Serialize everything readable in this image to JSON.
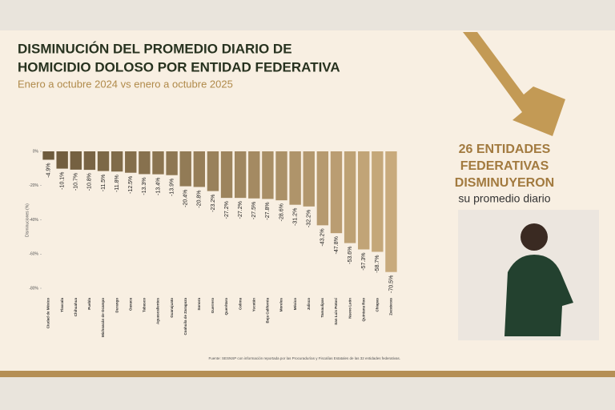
{
  "chart_data": {
    "type": "bar",
    "title": [
      "DISMINUCIÓN DEL PROMEDIO DIARIO DE",
      "HOMICIDIO DOLOSO POR ENTIDAD FEDERATIVA"
    ],
    "subtitle": "Enero a octubre 2024 vs enero a octubre 2025",
    "ylabel": "Disminuciones (%)",
    "source": "Fuente: SESNSP con información reportada por las Procuradurías y Fiscalías Estatales de las 32 entidades federativas.",
    "categories": [
      "Ciudad de México",
      "Tlaxcala",
      "Chihuahua",
      "Puebla",
      "Michoacán de Ocampo",
      "Durango",
      "Oaxaca",
      "Tabasco",
      "Aguascalientes",
      "Guanajuato",
      "Coahuila de Zaragoza",
      "Sonora",
      "Guerrero",
      "Querétaro",
      "Colima",
      "Yucatán",
      "Baja California",
      "Morelos",
      "México",
      "Jalisco",
      "Tamaulipas",
      "San Luis Potosí",
      "Nuevo León",
      "Quintana Roo",
      "Chiapas",
      "Zacatecas"
    ],
    "values": [
      -4.9,
      -10.1,
      -10.7,
      -10.8,
      -11.5,
      -11.8,
      -12.5,
      -13.3,
      -13.4,
      -13.9,
      -20.4,
      -20.8,
      -23.2,
      -27.2,
      -27.2,
      -27.5,
      -27.8,
      -28.6,
      -31.2,
      -32.2,
      -43.2,
      -47.8,
      -53.6,
      -57.3,
      -58.7,
      -70.5
    ],
    "value_labels": [
      "-4.9%",
      "-10.1%",
      "-10.7%",
      "-10.8%",
      "-11.5%",
      "-11.8%",
      "-12.5%",
      "-13.3%",
      "-13.4%",
      "-13.9%",
      "-20.4%",
      "-20.8%",
      "-23.2%",
      "-27.2%",
      "-27.2%",
      "-27.5%",
      "-27.8%",
      "-28.6%",
      "-31.2%",
      "-32.2%",
      "-43.2%",
      "-47.8%",
      "-53.6%",
      "-57.3%",
      "-58.7%",
      "-70.5%"
    ],
    "colors": [
      "#6e5b3c",
      "#725e3f",
      "#756141",
      "#796444",
      "#7c6846",
      "#806b49",
      "#846e4b",
      "#87714e",
      "#8b7450",
      "#8e7753",
      "#927b56",
      "#967e58",
      "#99815b",
      "#9d845d",
      "#a08760",
      "#a48a62",
      "#a88e65",
      "#ab9168",
      "#af946a",
      "#b2976d",
      "#b69a6f",
      "#ba9d72",
      "#bda174",
      "#c1a477",
      "#c4a779",
      "#c8aa7c"
    ],
    "ylim": [
      -80,
      0
    ],
    "yticks": [
      {
        "value": 0,
        "label": "0%"
      },
      {
        "value": -20,
        "label": "-20%"
      },
      {
        "value": -40,
        "label": "-40%"
      },
      {
        "value": -60,
        "label": "-60%"
      },
      {
        "value": -80,
        "label": "-80%"
      }
    ]
  },
  "slide": {
    "headline": [
      "26 ENTIDADES",
      "FEDERATIVAS",
      "DISMINUYERON"
    ],
    "caption": "su promedio diario"
  }
}
